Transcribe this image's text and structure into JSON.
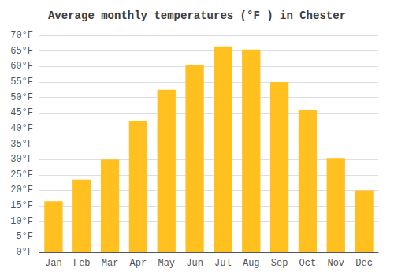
{
  "chart_data": {
    "type": "bar",
    "title": "Average monthly temperatures (°F ) in Chester",
    "categories": [
      "Jan",
      "Feb",
      "Mar",
      "Apr",
      "May",
      "Jun",
      "Jul",
      "Aug",
      "Sep",
      "Oct",
      "Nov",
      "Dec"
    ],
    "values": [
      16.5,
      23.5,
      30.0,
      42.5,
      52.5,
      60.5,
      66.5,
      65.5,
      55.0,
      46.0,
      30.5,
      20.0
    ],
    "color": "#FFC020",
    "ylim": [
      0,
      70
    ],
    "yticks": [
      {
        "value": 0,
        "label": "0°F"
      },
      {
        "value": 5,
        "label": "5°F"
      },
      {
        "value": 10,
        "label": "10°F"
      },
      {
        "value": 15,
        "label": "15°F"
      },
      {
        "value": 20,
        "label": "20°F"
      },
      {
        "value": 25,
        "label": "25°F"
      },
      {
        "value": 30,
        "label": "30°F"
      },
      {
        "value": 35,
        "label": "35°F"
      },
      {
        "value": 40,
        "label": "40°F"
      },
      {
        "value": 45,
        "label": "45°F"
      },
      {
        "value": 50,
        "label": "50°F"
      },
      {
        "value": 55,
        "label": "55°F"
      },
      {
        "value": 60,
        "label": "60°F"
      },
      {
        "value": 65,
        "label": "65°F"
      },
      {
        "value": 70,
        "label": "70°F"
      }
    ],
    "grid": true
  }
}
